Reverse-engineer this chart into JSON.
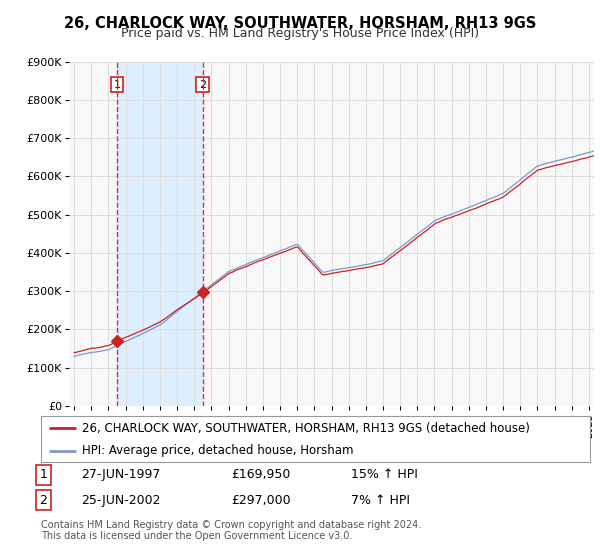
{
  "title": "26, CHARLOCK WAY, SOUTHWATER, HORSHAM, RH13 9GS",
  "subtitle": "Price paid vs. HM Land Registry's House Price Index (HPI)",
  "legend_line1": "26, CHARLOCK WAY, SOUTHWATER, HORSHAM, RH13 9GS (detached house)",
  "legend_line2": "HPI: Average price, detached house, Horsham",
  "sale1_label": "1",
  "sale1_date": "27-JUN-1997",
  "sale1_price": "£169,950",
  "sale1_hpi": "15% ↑ HPI",
  "sale1_year": 1997.5,
  "sale1_value": 169950,
  "sale2_label": "2",
  "sale2_date": "25-JUN-2002",
  "sale2_price": "£297,000",
  "sale2_hpi": "7% ↑ HPI",
  "sale2_year": 2002.5,
  "sale2_value": 297000,
  "copyright": "Contains HM Land Registry data © Crown copyright and database right 2024.\nThis data is licensed under the Open Government Licence v3.0.",
  "red_color": "#cc2222",
  "blue_color": "#7799cc",
  "shade_color": "#ddeeff",
  "background_chart": "#f8f8f8",
  "background_fig": "#ffffff",
  "grid_color": "#dddddd",
  "ylim": [
    0,
    900000
  ],
  "xlim_start": 1994.7,
  "xlim_end": 2025.3,
  "yticks": [
    0,
    100000,
    200000,
    300000,
    400000,
    500000,
    600000,
    700000,
    800000,
    900000
  ],
  "ylabels": [
    "£0",
    "£100K",
    "£200K",
    "£300K",
    "£400K",
    "£500K",
    "£600K",
    "£700K",
    "£800K",
    "£900K"
  ]
}
